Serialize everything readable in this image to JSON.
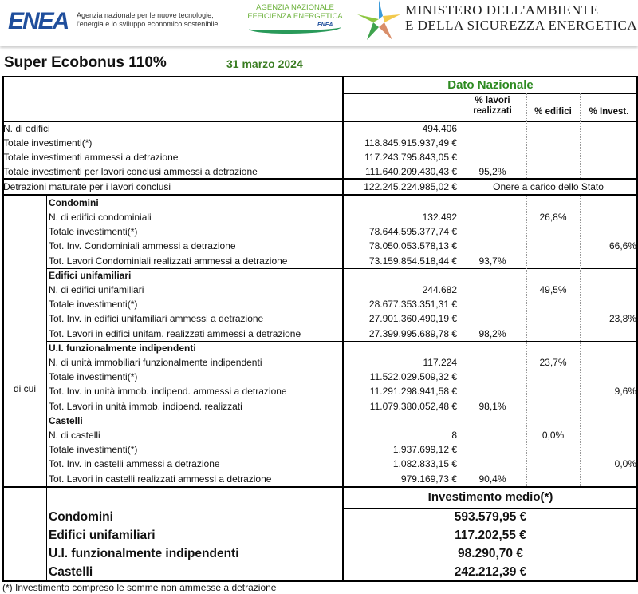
{
  "header": {
    "enea_logo": "ENEA",
    "enea_tagline": "Agenzia nazionale per le nuove tecnologie, l'energia e lo sviluppo economico sostenibile",
    "agency_name": "AGENZIA NAZIONALE EFFICIENZA ENERGETICA",
    "agency_logo_text": "ENEA",
    "ministry_line1": "MINISTERO DELL'AMBIENTE",
    "ministry_line2": "E DELLA SICUREZZA ENERGETICA"
  },
  "title": "Super Ecobonus 110%",
  "date": "31 marzo 2024",
  "table": {
    "group_header": "Dato Nazionale",
    "col_lavori": "% lavori realizzati",
    "col_edifici": "% edifici",
    "col_invest": "% Invest.",
    "general_rows": [
      {
        "label": "N. di edifici",
        "value": "494.406",
        "lavori": "",
        "edifici": "",
        "invest": ""
      },
      {
        "label": "Totale investimenti(*)",
        "value": "118.845.915.937,49 €",
        "lavori": "",
        "edifici": "",
        "invest": ""
      },
      {
        "label": "Totale investimenti ammessi a detrazione",
        "value": "117.243.795.843,05 €",
        "lavori": "",
        "edifici": "",
        "invest": ""
      },
      {
        "label": "Totale investimenti per lavori conclusi ammessi a detrazione",
        "value": "111.640.209.430,43 €",
        "lavori": "95,2%",
        "edifici": "",
        "invest": ""
      }
    ],
    "detrazioni": {
      "label": "Detrazioni maturate per i lavori conclusi",
      "value": "122.245.224.985,02 €",
      "note": "Onere a carico dello Stato"
    },
    "di_cui": "di cui",
    "blocks": [
      {
        "title": "Condomini",
        "rows": [
          {
            "label": "N. di edifici condominiali",
            "value": "132.492",
            "lavori": "",
            "edifici": "26,8%",
            "invest": ""
          },
          {
            "label": "Totale investimenti(*)",
            "value": "78.644.595.377,74 €",
            "lavori": "",
            "edifici": "",
            "invest": ""
          },
          {
            "label": "Tot. Inv. Condominiali ammessi a detrazione",
            "value": "78.050.053.578,13 €",
            "lavori": "",
            "edifici": "",
            "invest": "66,6%"
          },
          {
            "label": "Tot. Lavori Condominiali realizzati ammessi a detrazione",
            "value": "73.159.854.518,44 €",
            "lavori": "93,7%",
            "edifici": "",
            "invest": ""
          }
        ]
      },
      {
        "title": "Edifici unifamiliari",
        "rows": [
          {
            "label": "N. di edifici unifamiliari",
            "value": "244.682",
            "lavori": "",
            "edifici": "49,5%",
            "invest": ""
          },
          {
            "label": "Totale investimenti(*)",
            "value": "28.677.353.351,31 €",
            "lavori": "",
            "edifici": "",
            "invest": ""
          },
          {
            "label": "Tot. Inv. in edifici unifamiliari ammessi a detrazione",
            "value": "27.901.360.490,19 €",
            "lavori": "",
            "edifici": "",
            "invest": "23,8%"
          },
          {
            "label": "Tot. Lavori in edifici unifam. realizzati ammessi a detrazione",
            "value": "27.399.995.689,78 €",
            "lavori": "98,2%",
            "edifici": "",
            "invest": ""
          }
        ]
      },
      {
        "title": "U.I. funzionalmente indipendenti",
        "rows": [
          {
            "label": "N. di unità immobiliari funzionalmente indipendenti",
            "value": "117.224",
            "lavori": "",
            "edifici": "23,7%",
            "invest": ""
          },
          {
            "label": "Totale investimenti(*)",
            "value": "11.522.029.509,32 €",
            "lavori": "",
            "edifici": "",
            "invest": ""
          },
          {
            "label": "Tot. Inv. in unità immob. indipend. ammessi a detrazione",
            "value": "11.291.298.941,58 €",
            "lavori": "",
            "edifici": "",
            "invest": "9,6%"
          },
          {
            "label": "Tot. Lavori in unità immob. indipend. realizzati",
            "value": "11.079.380.052,48 €",
            "lavori": "98,1%",
            "edifici": "",
            "invest": ""
          }
        ]
      },
      {
        "title": "Castelli",
        "rows": [
          {
            "label": "N. di castelli",
            "value": "8",
            "lavori": "",
            "edifici": "0,0%",
            "invest": ""
          },
          {
            "label": "Totale investimenti(*)",
            "value": "1.937.699,12 €",
            "lavori": "",
            "edifici": "",
            "invest": ""
          },
          {
            "label": "Tot. Inv. in castelli ammessi a detrazione",
            "value": "1.082.833,15 €",
            "lavori": "",
            "edifici": "",
            "invest": "0,0%"
          },
          {
            "label": "Tot. Lavori in castelli realizzati ammessi a detrazione",
            "value": "979.169,73 €",
            "lavori": "90,4%",
            "edifici": "",
            "invest": ""
          }
        ]
      }
    ],
    "avg_header": "Investimento medio(*)",
    "avg_rows": [
      {
        "label": "Condomini",
        "value": "593.579,95 €"
      },
      {
        "label": "Edifici unifamiliari",
        "value": "117.202,55 €"
      },
      {
        "label": "U.I. funzionalmente indipendenti",
        "value": "98.290,70 €"
      },
      {
        "label": "Castelli",
        "value": "242.212,39 €"
      }
    ]
  },
  "footnote": "(*) Investimento compreso le somme non ammesse a detrazione",
  "colors": {
    "green_accent": "#2e8b22",
    "date_green": "#3a7d22",
    "enea_blue": "#1f4e9c"
  }
}
